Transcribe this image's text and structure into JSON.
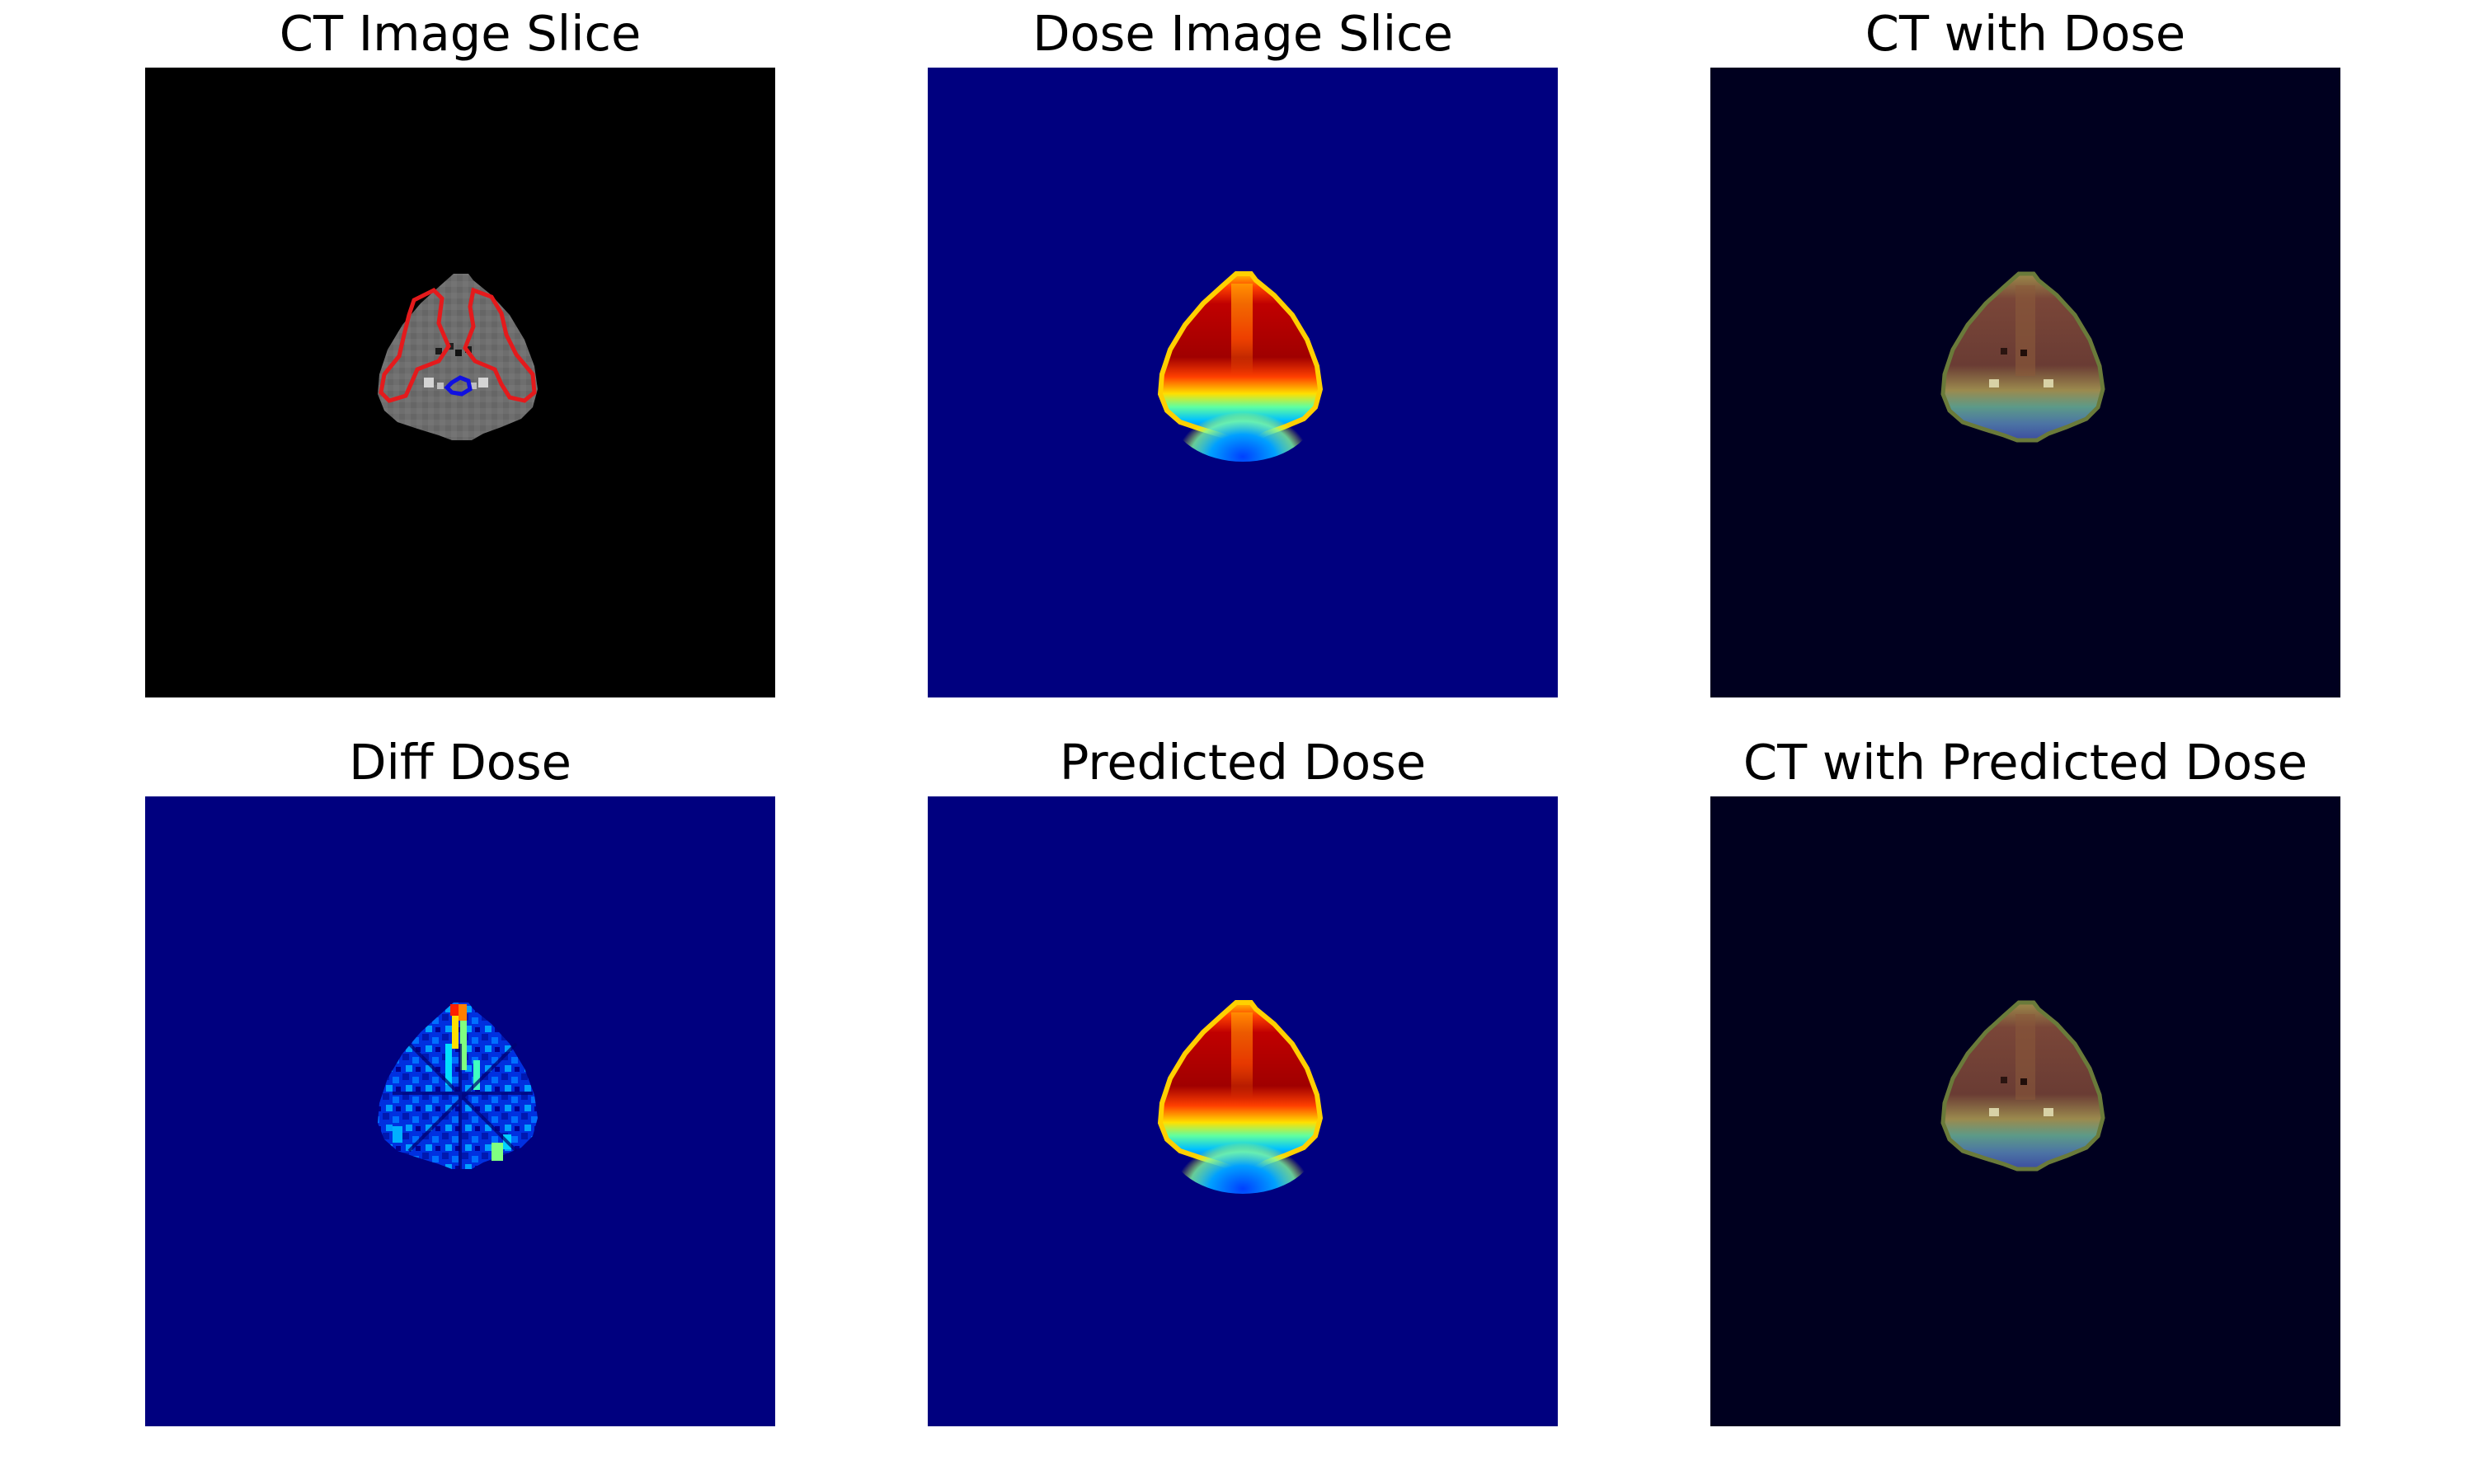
{
  "figure": {
    "panels": [
      {
        "id": "ct",
        "title": "CT Image Slice",
        "colormap": "gray",
        "contours": [
          "red",
          "blue"
        ]
      },
      {
        "id": "dose",
        "title": "Dose Image Slice",
        "colormap": "jet"
      },
      {
        "id": "ct-dose",
        "title": "CT with Dose",
        "colormap": "jet-overlay"
      },
      {
        "id": "diff",
        "title": "Diff Dose",
        "colormap": "jet"
      },
      {
        "id": "pred",
        "title": "Predicted Dose",
        "colormap": "jet"
      },
      {
        "id": "ct-pred",
        "title": "CT with Predicted Dose",
        "colormap": "jet-overlay"
      }
    ]
  },
  "colors": {
    "background": "#ffffff",
    "ct_background": "#000000",
    "jet_low": "#00007f",
    "overlay_background": "#00001f",
    "contour_red": "#e41a1c",
    "contour_blue": "#1010e0"
  }
}
